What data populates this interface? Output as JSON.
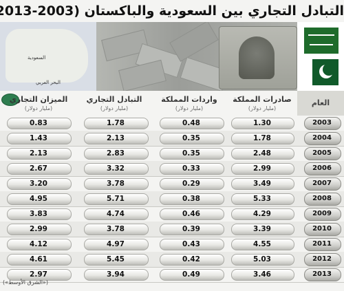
{
  "title": "التبادل التجاري بين السعودية والباكستان (2003-2013)",
  "source": "(«الشرق الأوسط»)",
  "map_labels": {
    "saudi": "السعودية",
    "sea": "البحر العربي"
  },
  "colors": {
    "header_bg": "#d9d9d4",
    "saudi_green": "#1e6b2b",
    "pakistan_green": "#105a2a"
  },
  "chart_data": {
    "type": "table",
    "columns": [
      {
        "key": "year",
        "label": "العام",
        "unit": ""
      },
      {
        "key": "exports",
        "label": "صادرات المملكة",
        "unit": "(مليار دولار)"
      },
      {
        "key": "imports",
        "label": "واردات المملكة",
        "unit": "(مليار دولار)"
      },
      {
        "key": "trade",
        "label": "التبادل التجاري",
        "unit": "(مليار دولار)"
      },
      {
        "key": "balance",
        "label": "الميزان التجاري",
        "unit": "(مليار دولار)"
      }
    ],
    "rows": [
      {
        "year": "2003",
        "exports": "1.30",
        "imports": "0.48",
        "trade": "1.78",
        "balance": "0.83"
      },
      {
        "year": "2004",
        "exports": "1.78",
        "imports": "0.35",
        "trade": "2.13",
        "balance": "1.43"
      },
      {
        "year": "2005",
        "exports": "2.48",
        "imports": "0.35",
        "trade": "2.83",
        "balance": "2.13"
      },
      {
        "year": "2006",
        "exports": "2.99",
        "imports": "0.33",
        "trade": "3.32",
        "balance": "2.67"
      },
      {
        "year": "2007",
        "exports": "3.49",
        "imports": "0.29",
        "trade": "3.78",
        "balance": "3.20"
      },
      {
        "year": "2008",
        "exports": "5.33",
        "imports": "0.38",
        "trade": "5.71",
        "balance": "4.95"
      },
      {
        "year": "2009",
        "exports": "4.29",
        "imports": "0.46",
        "trade": "4.74",
        "balance": "3.83"
      },
      {
        "year": "2010",
        "exports": "3.39",
        "imports": "0.39",
        "trade": "3.78",
        "balance": "2.99"
      },
      {
        "year": "2011",
        "exports": "4.55",
        "imports": "0.43",
        "trade": "4.97",
        "balance": "4.12"
      },
      {
        "year": "2012",
        "exports": "5.03",
        "imports": "0.42",
        "trade": "5.45",
        "balance": "4.61"
      },
      {
        "year": "2013",
        "exports": "3.46",
        "imports": "0.49",
        "trade": "3.94",
        "balance": "2.97"
      }
    ]
  }
}
